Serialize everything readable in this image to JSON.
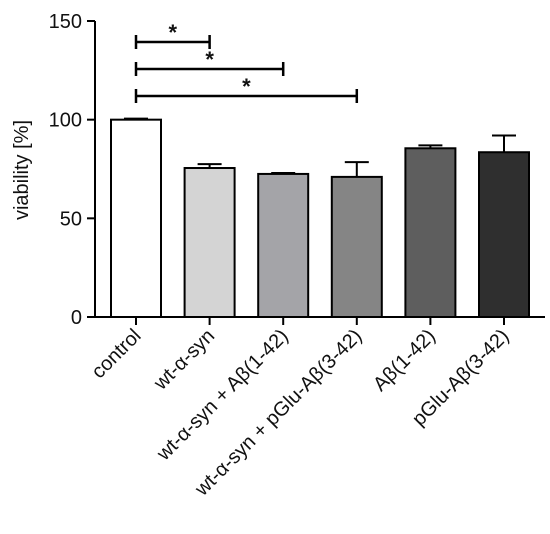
{
  "chart_data": {
    "type": "bar",
    "ylabel": "viability [%]",
    "xlabel": "",
    "ylim": [
      0,
      150
    ],
    "yticks": [
      0,
      50,
      100,
      150
    ],
    "categories": [
      "control",
      "wt-α-syn",
      "wt-α-syn + Aβ(1-42)",
      "wt-α-syn + pGlu-Aβ(3-42)",
      "Aβ(1-42)",
      "pGlu-Aβ(3-42)"
    ],
    "values": [
      100,
      75.5,
      72.5,
      71,
      85.5,
      83.5
    ],
    "errors": [
      0.5,
      2,
      0.5,
      7.5,
      1.5,
      8.5
    ],
    "bar_colors": [
      "#ffffff",
      "#d4d4d4",
      "#a4a4a8",
      "#858585",
      "#5e5e5e",
      "#2f2f2f"
    ],
    "significance": [
      {
        "from": "control",
        "to": "wt-α-syn",
        "label": "*"
      },
      {
        "from": "control",
        "to": "wt-α-syn + Aβ(1-42)",
        "label": "*"
      },
      {
        "from": "control",
        "to": "wt-α-syn + pGlu-Aβ(3-42)",
        "label": "*"
      }
    ],
    "grid": false,
    "legend": "none"
  }
}
